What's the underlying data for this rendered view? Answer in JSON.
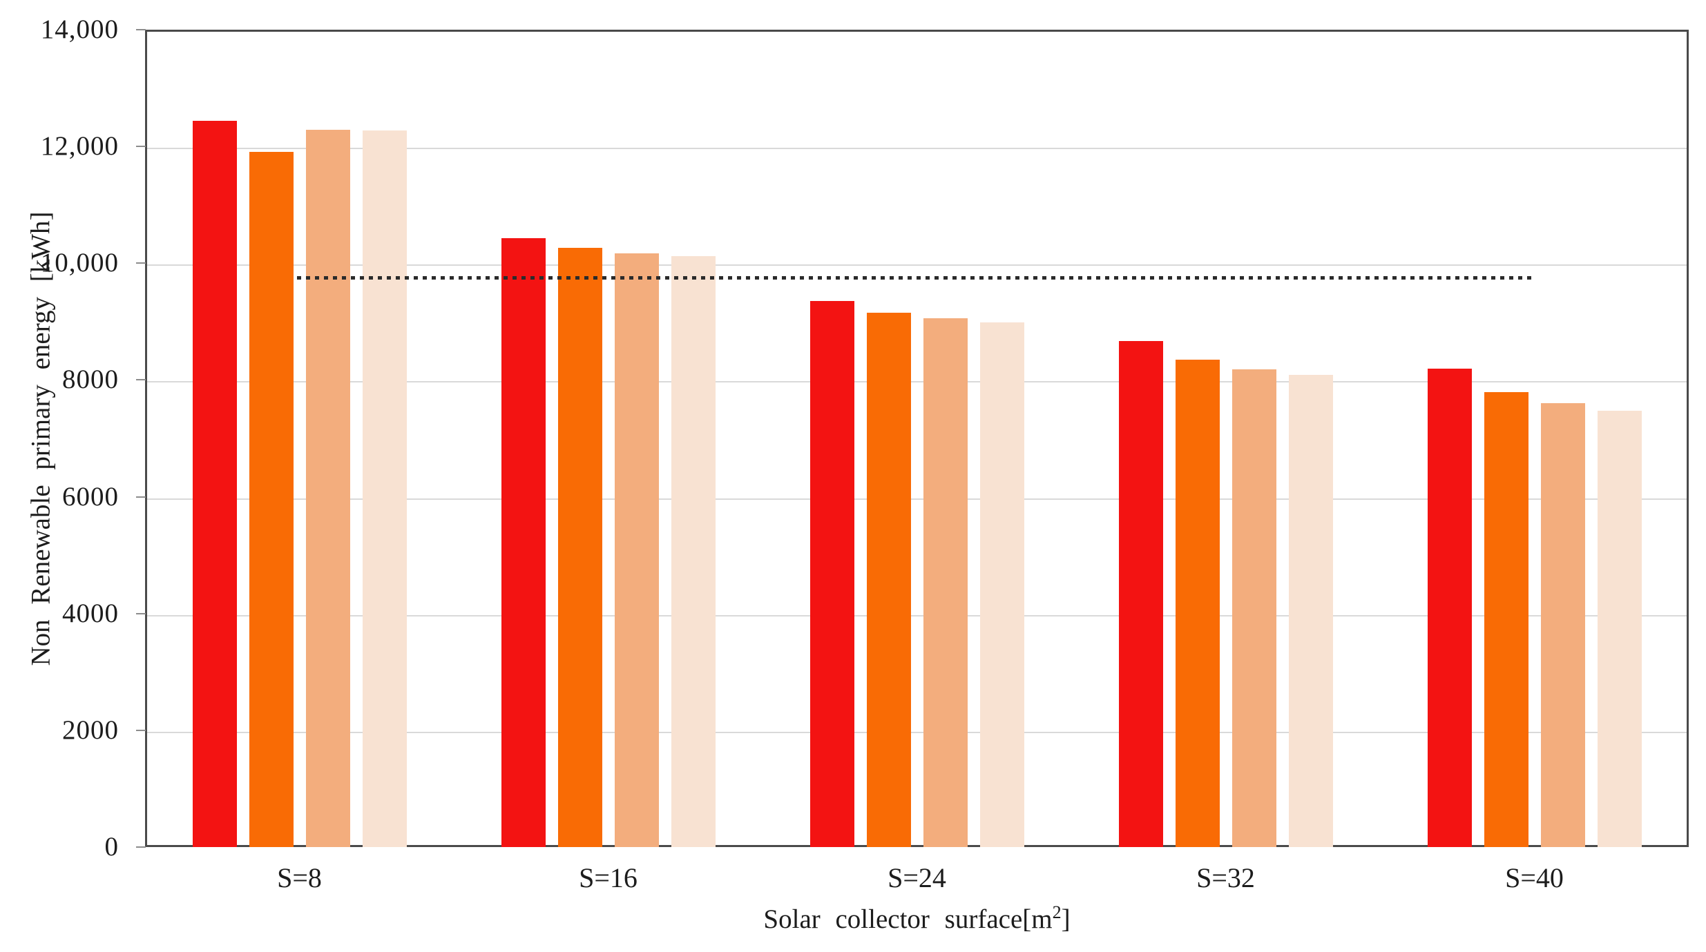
{
  "page": {
    "background": "#FFFFFF"
  },
  "chart_data": {
    "type": "bar",
    "title": "",
    "categories": [
      "S=8",
      "S=16",
      "S=24",
      "S=32",
      "S=40"
    ],
    "series": [
      {
        "name": "red",
        "color": "#F31312",
        "values": [
          12440,
          10430,
          9350,
          8670,
          8200
        ]
      },
      {
        "name": "orange",
        "color": "#F96B05",
        "values": [
          11910,
          10260,
          9150,
          8350,
          7790
        ]
      },
      {
        "name": "light-orange",
        "color": "#F3AD7D",
        "values": [
          12290,
          10170,
          9060,
          8180,
          7600
        ]
      },
      {
        "name": "pale-peach",
        "color": "#F8E2D2",
        "values": [
          12270,
          10120,
          8990,
          8090,
          7470
        ]
      }
    ],
    "reference_line": {
      "value": 9760,
      "style": "dotted",
      "color": "#2B2B2B"
    },
    "xlabel": "Solar collector surface[m²]",
    "xlabel_parts": {
      "prefix": "Solar collector surface[m",
      "superscript": "2",
      "suffix": "]"
    },
    "ylabel": "Non Renewable primary energy [kWh]",
    "ylim": [
      0,
      14000
    ],
    "ytick_interval": 2000,
    "ytick_labels": [
      "0",
      "2000",
      "4000",
      "6000",
      "8000",
      "10,000",
      "12,000",
      "14,000"
    ],
    "grid": true,
    "legend": false,
    "colors": {
      "gridline": "#D9D9D9",
      "tick_mark": "#8C8C8C",
      "axis_border": "#4A4A4A",
      "text": "#1C1C1C"
    }
  }
}
